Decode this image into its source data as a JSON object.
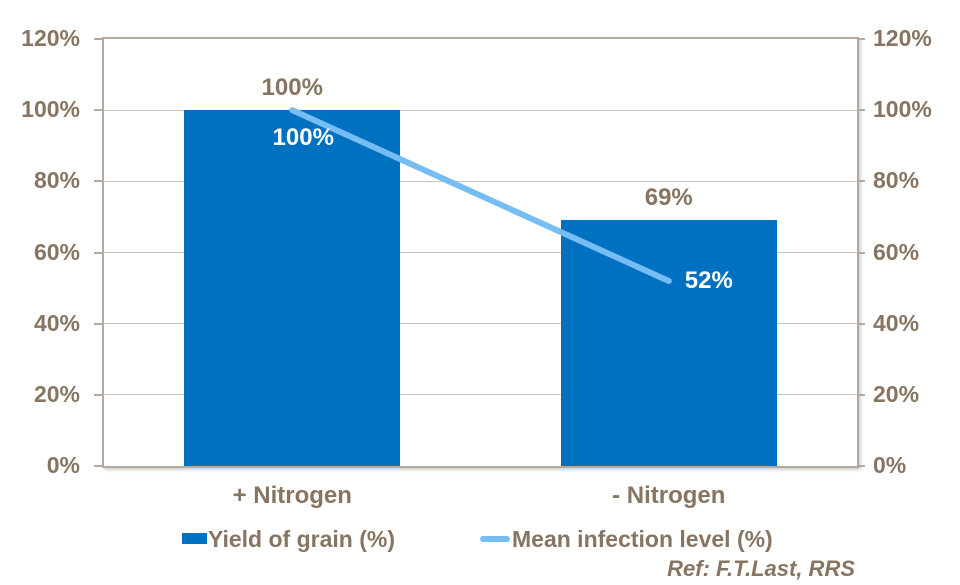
{
  "chart_data": {
    "type": "bar",
    "categories": [
      "+ Nitrogen",
      "- Nitrogen"
    ],
    "series": [
      {
        "name": "Yield of grain (%)",
        "type": "bar",
        "values": [
          100,
          69
        ],
        "labels": [
          "100%",
          "69%"
        ],
        "color": "#0070C0"
      },
      {
        "name": "Mean infection level (%)",
        "type": "line",
        "values": [
          100,
          52
        ],
        "labels": [
          "100%",
          "52%"
        ],
        "color": "#76BDF3"
      }
    ],
    "title": "",
    "xlabel": "",
    "ylabel": "",
    "ylim": [
      0,
      120
    ],
    "ytick_step": 20,
    "yticks": [
      "120%",
      "100%",
      "80%",
      "60%",
      "40%",
      "20%",
      "0%"
    ],
    "secondary_axis_yticks": [
      "120%",
      "100%",
      "80%",
      "60%",
      "40%",
      "20%",
      "0%"
    ],
    "grid": true,
    "legend_position": "bottom"
  },
  "legend": {
    "items": [
      {
        "label": "Yield of grain (%)",
        "swatch": "bar-swatch"
      },
      {
        "label": "Mean infection level (%)",
        "swatch": "line-swatch"
      }
    ]
  },
  "footer": {
    "ref": "Ref: F.T.Last, RRS"
  },
  "colors": {
    "bar": "#0070C0",
    "line": "#76BDF3",
    "text": "#877562",
    "frame": "#B3A99E",
    "gridline": "#CCC3B8",
    "data_label_on_bar": "#FFFFFF"
  }
}
